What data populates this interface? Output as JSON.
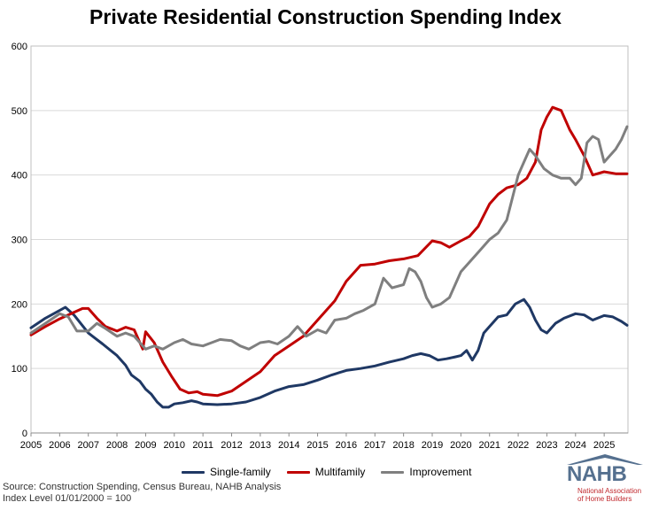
{
  "chart_data": {
    "type": "line",
    "title": "Private Residential Construction Spending Index",
    "xlabel": "",
    "ylabel": "",
    "xlim": [
      2005.0,
      2025.83
    ],
    "ylim": [
      0,
      600
    ],
    "y_ticks": [
      0,
      100,
      200,
      300,
      400,
      500,
      600
    ],
    "x_ticks": [
      2005,
      2006,
      2007,
      2008,
      2009,
      2010,
      2011,
      2012,
      2013,
      2014,
      2015,
      2016,
      2017,
      2018,
      2019,
      2020,
      2021,
      2022,
      2023,
      2024,
      2025
    ],
    "x_tick_labels": [
      "2005",
      "2006",
      "2007",
      "2008",
      "2009",
      "2010",
      "2011",
      "2012",
      "2013",
      "2014",
      "2015",
      "2016",
      "2017",
      "2018",
      "2019",
      "2020",
      "2021",
      "2022",
      "2023",
      "2024",
      "2025"
    ],
    "grid": "horizontal",
    "legend_position": "bottom",
    "series": [
      {
        "name": "Single-family",
        "color": "#1f3864",
        "x": [
          2005.0,
          2005.5,
          2006.0,
          2006.2,
          2006.5,
          2007.0,
          2007.5,
          2008.0,
          2008.3,
          2008.5,
          2008.8,
          2009.0,
          2009.2,
          2009.4,
          2009.6,
          2009.8,
          2010.0,
          2010.3,
          2010.6,
          2010.8,
          2011.0,
          2011.5,
          2012.0,
          2012.5,
          2013.0,
          2013.5,
          2014.0,
          2014.5,
          2015.0,
          2015.5,
          2016.0,
          2016.5,
          2017.0,
          2017.5,
          2018.0,
          2018.3,
          2018.6,
          2018.9,
          2019.2,
          2019.5,
          2019.8,
          2020.0,
          2020.2,
          2020.4,
          2020.6,
          2020.8,
          2021.0,
          2021.3,
          2021.6,
          2021.9,
          2022.2,
          2022.4,
          2022.6,
          2022.8,
          2023.0,
          2023.3,
          2023.6,
          2024.0,
          2024.3,
          2024.6,
          2025.0,
          2025.3,
          2025.6,
          2025.8
        ],
        "values": [
          163,
          178,
          190,
          195,
          183,
          155,
          138,
          120,
          105,
          90,
          80,
          68,
          60,
          48,
          40,
          40,
          45,
          47,
          50,
          48,
          45,
          44,
          45,
          48,
          55,
          65,
          72,
          75,
          82,
          90,
          97,
          100,
          104,
          110,
          115,
          120,
          123,
          120,
          113,
          115,
          118,
          120,
          128,
          113,
          128,
          155,
          165,
          180,
          183,
          200,
          207,
          195,
          175,
          160,
          155,
          170,
          178,
          185,
          183,
          175,
          182,
          180,
          173,
          167
        ]
      },
      {
        "name": "Multifamily",
        "color": "#c00000",
        "x": [
          2005.0,
          2005.5,
          2006.0,
          2006.5,
          2006.8,
          2007.0,
          2007.3,
          2007.6,
          2008.0,
          2008.3,
          2008.6,
          2008.9,
          2009.0,
          2009.3,
          2009.6,
          2009.9,
          2010.2,
          2010.5,
          2010.8,
          2011.0,
          2011.5,
          2012.0,
          2012.5,
          2013.0,
          2013.5,
          2014.0,
          2014.5,
          2015.0,
          2015.3,
          2015.6,
          2016.0,
          2016.5,
          2017.0,
          2017.5,
          2018.0,
          2018.5,
          2019.0,
          2019.3,
          2019.6,
          2020.0,
          2020.3,
          2020.6,
          2021.0,
          2021.3,
          2021.6,
          2022.0,
          2022.3,
          2022.6,
          2022.8,
          2023.0,
          2023.2,
          2023.5,
          2023.8,
          2024.0,
          2024.3,
          2024.6,
          2025.0,
          2025.4,
          2025.8
        ],
        "values": [
          152,
          165,
          177,
          187,
          193,
          193,
          178,
          165,
          158,
          164,
          160,
          130,
          157,
          140,
          110,
          88,
          68,
          62,
          64,
          60,
          58,
          65,
          80,
          95,
          120,
          135,
          150,
          175,
          190,
          205,
          235,
          260,
          262,
          267,
          270,
          275,
          298,
          295,
          288,
          298,
          305,
          320,
          355,
          370,
          380,
          385,
          395,
          420,
          470,
          490,
          505,
          500,
          470,
          455,
          430,
          400,
          405,
          402,
          402
        ]
      },
      {
        "name": "Improvement",
        "color": "#7f7f7f",
        "x": [
          2005.0,
          2005.5,
          2006.0,
          2006.3,
          2006.6,
          2007.0,
          2007.3,
          2007.6,
          2008.0,
          2008.3,
          2008.6,
          2009.0,
          2009.3,
          2009.6,
          2010.0,
          2010.3,
          2010.6,
          2011.0,
          2011.3,
          2011.6,
          2012.0,
          2012.3,
          2012.6,
          2013.0,
          2013.3,
          2013.6,
          2014.0,
          2014.3,
          2014.6,
          2015.0,
          2015.3,
          2015.6,
          2016.0,
          2016.3,
          2016.6,
          2017.0,
          2017.3,
          2017.6,
          2018.0,
          2018.2,
          2018.4,
          2018.6,
          2018.8,
          2019.0,
          2019.3,
          2019.6,
          2020.0,
          2020.3,
          2020.6,
          2021.0,
          2021.3,
          2021.6,
          2022.0,
          2022.2,
          2022.4,
          2022.6,
          2022.9,
          2023.2,
          2023.5,
          2023.8,
          2024.0,
          2024.2,
          2024.4,
          2024.6,
          2024.8,
          2025.0,
          2025.2,
          2025.4,
          2025.6,
          2025.7,
          2025.8
        ],
        "values": [
          155,
          170,
          185,
          180,
          158,
          158,
          170,
          162,
          150,
          155,
          150,
          130,
          135,
          130,
          140,
          145,
          138,
          135,
          140,
          145,
          143,
          135,
          130,
          140,
          142,
          138,
          150,
          165,
          150,
          160,
          155,
          175,
          178,
          185,
          190,
          200,
          240,
          225,
          230,
          255,
          250,
          235,
          210,
          195,
          200,
          210,
          250,
          265,
          280,
          300,
          310,
          330,
          400,
          420,
          440,
          430,
          410,
          400,
          395,
          395,
          385,
          395,
          450,
          460,
          455,
          420,
          430,
          440,
          455,
          465,
          475
        ]
      }
    ]
  },
  "legend": {
    "items": [
      {
        "label": "Single-family",
        "color": "#1f3864"
      },
      {
        "label": "Multifamily",
        "color": "#c00000"
      },
      {
        "label": "Improvement",
        "color": "#7f7f7f"
      }
    ]
  },
  "source": {
    "line1": "Source: Construction Spending, Census Bureau, NAHB Analysis",
    "line2": "Index Level 01/01/2000 = 100"
  },
  "logo": {
    "name": "NAHB",
    "line1": "National Association",
    "line2": "of Home Builders"
  }
}
